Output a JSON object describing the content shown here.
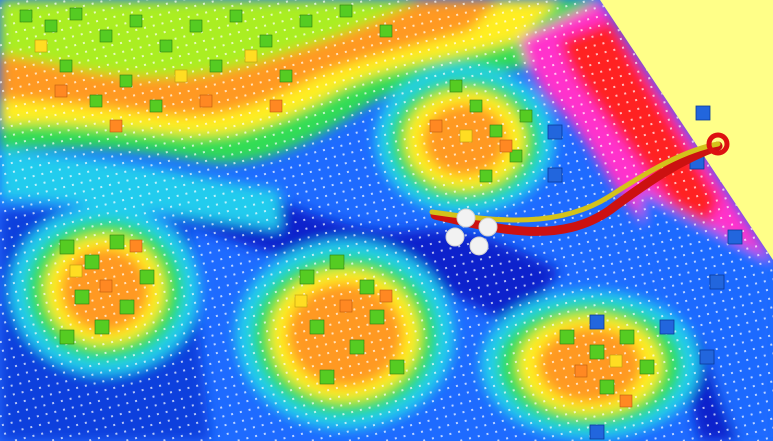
{
  "scene": {
    "background": "#ffff88",
    "colormap": [
      "#0000cc",
      "#1e6bff",
      "#22ccee",
      "#33dd55",
      "#aaee22",
      "#ffee22",
      "#ff9922",
      "#ff2222",
      "#ff33cc",
      "#cc33ff"
    ],
    "path_colors": {
      "primary": "#cc1111",
      "secondary": "#d4c21a"
    },
    "robot_color": "#f2f2f2",
    "goal_color": "#dd1111",
    "obstacle_color": "#2266dd"
  }
}
